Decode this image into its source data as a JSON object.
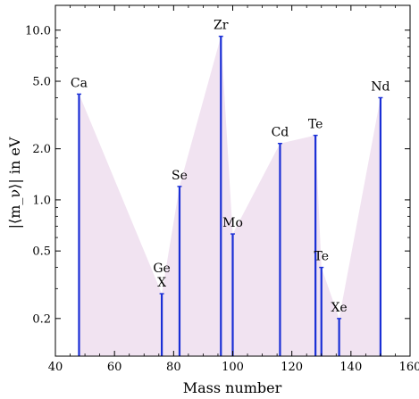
{
  "chart_data": {
    "type": "line",
    "xlabel": "Mass number",
    "ylabel": "|⟨m_ν⟩| in eV",
    "xlim": [
      40,
      160
    ],
    "ylim": [
      0.12,
      14
    ],
    "yscale": "log",
    "x_ticks": [
      40,
      60,
      80,
      100,
      120,
      140,
      160
    ],
    "y_ticks": [
      0.2,
      0.5,
      1.0,
      2.0,
      5.0,
      10.0
    ],
    "y_tick_labels": [
      "0.2",
      "0.5",
      "1.0",
      "2.0",
      "5.0",
      "10.0"
    ],
    "series": [
      {
        "points": [
          {
            "x": 48,
            "y": 4.2,
            "label": "Ca"
          },
          {
            "x": 76,
            "y": 0.28,
            "label": "Ge\nX"
          },
          {
            "x": 82,
            "y": 1.2,
            "label": "Se"
          },
          {
            "x": 96,
            "y": 9.2,
            "label": "Zr"
          },
          {
            "x": 100,
            "y": 0.63,
            "label": "Mo"
          },
          {
            "x": 116,
            "y": 2.15,
            "label": "Cd"
          },
          {
            "x": 128,
            "y": 2.4,
            "label": "Te"
          },
          {
            "x": 130,
            "y": 0.4,
            "label": "Te"
          },
          {
            "x": 136,
            "y": 0.2,
            "label": "Xe"
          },
          {
            "x": 150,
            "y": 4.0,
            "label": "Nd"
          }
        ]
      }
    ],
    "colors": {
      "stem": "#1a2fd6",
      "fill": "#f1e3f1",
      "axis": "#000000"
    },
    "grid": false
  }
}
